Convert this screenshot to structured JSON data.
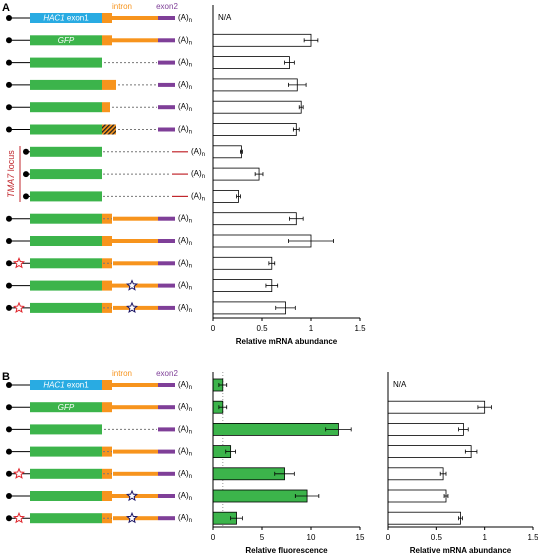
{
  "labels": {
    "panel_a": "A",
    "panel_b": "B",
    "hac1": "HAC1",
    "exon1": " exon1",
    "gfp": "GFP",
    "intron": "intron",
    "exon2": "exon2",
    "tma7": "TMA7",
    "locus": " locus",
    "polya": "(A)",
    "polya_sub": "n",
    "na": "N/A"
  },
  "chart_data": [
    {
      "type": "bar",
      "orientation": "horizontal",
      "xlabel": "Relative mRNA abundance",
      "color": "#ffffff",
      "values": [
        null,
        1.0,
        0.78,
        0.86,
        0.9,
        0.85,
        0.29,
        0.47,
        0.26,
        0.85,
        1.0,
        0.6,
        0.6,
        0.74
      ],
      "errors": [
        null,
        0.07,
        0.05,
        0.09,
        0.02,
        0.03,
        0.01,
        0.04,
        0.02,
        0.07,
        0.23,
        0.03,
        0.06,
        0.1
      ],
      "xlim": [
        0,
        1.5
      ],
      "xticks": [
        0,
        0.5,
        1,
        1.5
      ]
    },
    {
      "type": "bar",
      "orientation": "horizontal",
      "xlabel": "Relative fluorescence",
      "color": "#3cb44b",
      "values": [
        1.0,
        1.0,
        12.8,
        1.8,
        7.3,
        9.6,
        2.4
      ],
      "errors": [
        0.4,
        0.4,
        1.3,
        0.5,
        1.0,
        1.2,
        0.6
      ],
      "reference_line": 1,
      "xlim": [
        0,
        15
      ],
      "xticks": [
        0,
        5,
        10,
        15
      ]
    },
    {
      "type": "bar",
      "orientation": "horizontal",
      "xlabel": "Relative mRNA abundance",
      "color": "#ffffff",
      "values": [
        null,
        1.0,
        0.78,
        0.86,
        0.57,
        0.6,
        0.75
      ],
      "errors": [
        null,
        0.07,
        0.05,
        0.06,
        0.03,
        0.02,
        0.02
      ],
      "xlim": [
        0,
        1.5
      ],
      "xticks": [
        0,
        0.5,
        1,
        1.5
      ]
    }
  ]
}
